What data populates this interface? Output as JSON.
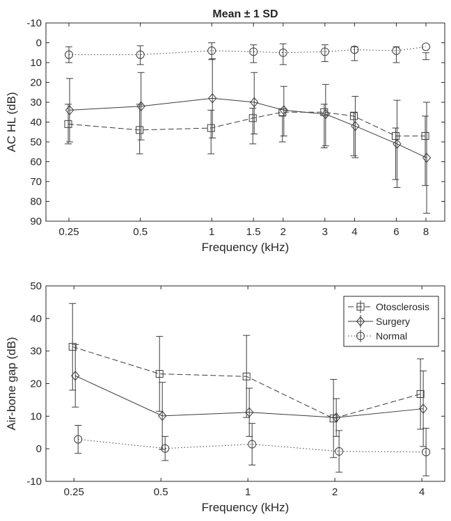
{
  "chart_data": [
    {
      "type": "line",
      "title": "Mean ± 1 SD",
      "xlabel": "Frequency (kHz)",
      "ylabel": "AC  HL  (dB)",
      "x_scale": "log",
      "x_ticks": [
        0.25,
        0.5,
        1,
        1.5,
        2,
        3,
        4,
        6,
        8
      ],
      "x_tick_labels": [
        "0.25",
        "0.5",
        "1",
        "1.5",
        "2",
        "3",
        "4",
        "6",
        "8"
      ],
      "xlim": [
        0.2,
        9.6
      ],
      "ylim": [
        -10,
        90
      ],
      "y_reversed": true,
      "y_ticks": [
        -10,
        0,
        10,
        20,
        30,
        40,
        50,
        60,
        70,
        80,
        90
      ],
      "y_tick_labels": [
        "-10",
        "0",
        "10",
        "20",
        "30",
        "40",
        "50",
        "60",
        "70",
        "80",
        "90"
      ],
      "grid": false,
      "series": [
        {
          "name": "Otosclerosis",
          "marker": "square",
          "line_style": "dashed",
          "color": "#3a3a3a",
          "x": [
            0.25,
            0.5,
            1,
            1.5,
            2,
            3,
            4,
            6,
            8
          ],
          "y": [
            41,
            44,
            43,
            38,
            35,
            35,
            37,
            47,
            47
          ],
          "err_low": [
            31,
            31,
            34,
            33,
            37,
            31,
            35,
            43,
            37
          ],
          "err_high": [
            51,
            56,
            56,
            51,
            50,
            53,
            57,
            69,
            72
          ],
          "x_offset": -1
        },
        {
          "name": "Surgery",
          "marker": "diamond",
          "line_style": "solid",
          "color": "#3a3a3a",
          "x": [
            0.25,
            0.5,
            1,
            1.5,
            2,
            3,
            4,
            6,
            8
          ],
          "y": [
            34,
            32,
            28,
            30,
            34,
            36,
            42,
            51,
            58
          ],
          "err_low": [
            18,
            15,
            8,
            15,
            22,
            21,
            27,
            29,
            30
          ],
          "err_high": [
            50,
            49,
            48,
            46,
            47,
            52,
            58,
            73,
            86
          ],
          "x_offset": 1
        },
        {
          "name": "Normal",
          "marker": "circle",
          "line_style": "dotted",
          "color": "#3a3a3a",
          "x": [
            0.25,
            0.5,
            1,
            1.5,
            2,
            3,
            4,
            6,
            8
          ],
          "y": [
            6,
            6,
            4,
            4.5,
            5,
            4.5,
            3.5,
            4,
            2
          ],
          "err_low": [
            2,
            1.5,
            0,
            1,
            0.5,
            1,
            2,
            2,
            5
          ],
          "err_high": [
            10,
            11,
            8.5,
            10,
            11,
            9.5,
            9,
            10,
            8.5
          ],
          "x_offset": 0
        }
      ]
    },
    {
      "type": "line",
      "title": "",
      "xlabel": "Frequency (kHz)",
      "ylabel": "Air-bone gap (dB)",
      "x_scale": "log",
      "x_ticks": [
        0.25,
        0.5,
        1,
        2,
        4
      ],
      "x_tick_labels": [
        "0.25",
        "0.5",
        "1",
        "2",
        "4"
      ],
      "xlim": [
        0.2,
        4.8
      ],
      "ylim": [
        -10,
        50
      ],
      "y_reversed": false,
      "y_ticks": [
        -10,
        0,
        10,
        20,
        30,
        40,
        50
      ],
      "y_tick_labels": [
        "-10",
        "0",
        "10",
        "20",
        "30",
        "40",
        "50"
      ],
      "grid": false,
      "legend": {
        "position": "top-right",
        "entries": [
          "Otosclerosis",
          "Surgery",
          "Normal"
        ]
      },
      "series": [
        {
          "name": "Otosclerosis",
          "marker": "square",
          "line_style": "dashed",
          "color": "#3a3a3a",
          "x": [
            0.25,
            0.5,
            1,
            2,
            4
          ],
          "y": [
            31.3,
            23,
            22.2,
            9.3,
            16.8
          ],
          "err_low": [
            18,
            11.5,
            9.6,
            -2.7,
            6
          ],
          "err_high": [
            44.6,
            34.5,
            34.8,
            21.3,
            27.6
          ],
          "x_offset": -2
        },
        {
          "name": "Surgery",
          "marker": "diamond",
          "line_style": "solid",
          "color": "#3a3a3a",
          "x": [
            0.25,
            0.5,
            1,
            2,
            4
          ],
          "y": [
            22.4,
            10.1,
            11.2,
            9.6,
            12.3
          ],
          "err_low": [
            12.8,
            -0.2,
            3.8,
            3.8,
            0.7
          ],
          "err_high": [
            32,
            20.4,
            18.6,
            15.4,
            23.9
          ],
          "x_offset": 2
        },
        {
          "name": "Normal",
          "marker": "circle",
          "line_style": "dotted",
          "color": "#3a3a3a",
          "x": [
            0.25,
            0.5,
            1,
            2,
            4
          ],
          "y": [
            2.9,
            0.1,
            1.4,
            -0.8,
            -1
          ],
          "err_low": [
            -1.4,
            -3.6,
            -5,
            -7.2,
            -8.3
          ],
          "err_high": [
            7.2,
            3.8,
            7.8,
            5.6,
            6.3
          ],
          "x_offset": 6
        }
      ]
    }
  ]
}
